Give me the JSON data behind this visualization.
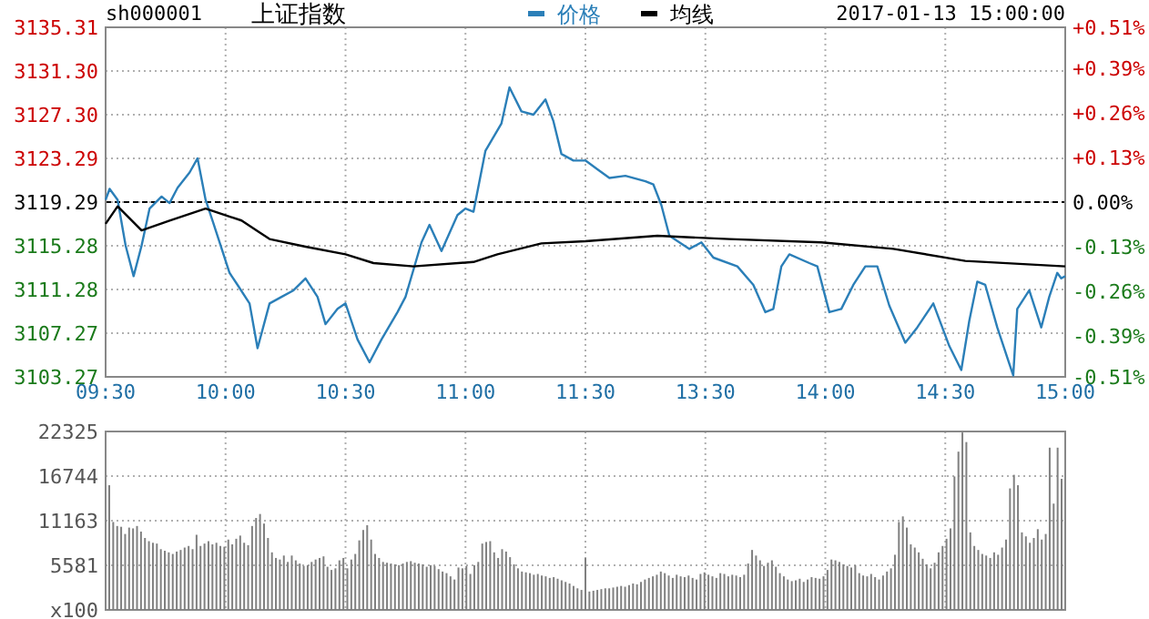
{
  "chart_data": [
    {
      "type": "line",
      "title": "上证指数",
      "subtitle": "sh000001",
      "annotations": [
        "2017-01-13 15:00:00"
      ],
      "legend": "top",
      "grid": true,
      "categories": [
        "09:30",
        null,
        null,
        null,
        null,
        null,
        null,
        null,
        null,
        null,
        null,
        null,
        null,
        null,
        null,
        null,
        null,
        null,
        null,
        null,
        null,
        null,
        null,
        null,
        null,
        null,
        null,
        null,
        null,
        null,
        "10:00",
        null,
        null,
        null,
        null,
        null,
        null,
        null,
        null,
        null,
        null,
        null,
        null,
        null,
        null,
        null,
        null,
        null,
        null,
        null,
        null,
        null,
        null,
        null,
        null,
        null,
        null,
        null,
        null,
        null,
        "10:30",
        null,
        null,
        null,
        null,
        null,
        null,
        null,
        null,
        null,
        null,
        null,
        null,
        null,
        null,
        null,
        null,
        null,
        null,
        null,
        null,
        null,
        null,
        null,
        null,
        null,
        null,
        null,
        null,
        null,
        "11:00",
        null,
        null,
        null,
        null,
        null,
        null,
        null,
        null,
        null,
        null,
        null,
        null,
        null,
        null,
        null,
        null,
        null,
        null,
        null,
        null,
        null,
        null,
        null,
        null,
        null,
        null,
        null,
        null,
        null,
        "11:30",
        null,
        null,
        null,
        null,
        null,
        null,
        null,
        null,
        null,
        null,
        null,
        null,
        null,
        null,
        null,
        null,
        null,
        null,
        null,
        null,
        null,
        null,
        null,
        null,
        null,
        null,
        null,
        null,
        null,
        "13:30",
        null,
        null,
        null,
        null,
        null,
        null,
        null,
        null,
        null,
        null,
        null,
        null,
        null,
        null,
        null,
        null,
        null,
        null,
        null,
        null,
        null,
        null,
        null,
        null,
        null,
        null,
        null,
        null,
        null,
        "14:00",
        null,
        null,
        null,
        null,
        null,
        null,
        null,
        null,
        null,
        null,
        null,
        null,
        null,
        null,
        null,
        null,
        null,
        null,
        null,
        null,
        null,
        null,
        null,
        null,
        null,
        null,
        null,
        null,
        null,
        "14:30",
        null,
        null,
        null,
        null,
        null,
        null,
        null,
        null,
        null,
        null,
        null,
        null,
        null,
        null,
        null,
        null,
        null,
        null,
        null,
        null,
        null,
        null,
        null,
        null,
        null,
        null,
        null,
        null,
        null,
        "15:00"
      ],
      "ylim": [
        3103.27,
        3135.31
      ],
      "yticks": [
        3103.27,
        3107.27,
        3111.28,
        3115.28,
        3119.29,
        3123.29,
        {
          "value": 3127.3,
          "label": "3127.30"
        },
        {
          "value": 3131.3,
          "label": "3131.30"
        },
        3135.31
      ],
      "y2lim": [
        -0.51,
        0.51
      ],
      "y2ticks": [
        {
          "value": -0.51,
          "label": "-0.51%"
        },
        {
          "value": -0.39,
          "label": "-0.39%"
        },
        {
          "value": -0.26,
          "label": "-0.26%"
        },
        {
          "value": -0.13,
          "label": "-0.13%"
        },
        {
          "value": 0,
          "label": "0.00%"
        },
        {
          "value": 0.13,
          "label": "+0.13%"
        },
        {
          "value": 0.26,
          "label": "+0.26%"
        },
        {
          "value": 0.39,
          "label": "+0.39%"
        },
        {
          "value": 0.51,
          "label": "+0.51%"
        }
      ],
      "ref_lines": [
        {
          "axis": "y",
          "value": 3119.29,
          "line_style": "dashed",
          "color": "#000000"
        }
      ],
      "series": [
        {
          "name": "价格",
          "color": "#2b7fb8",
          "values": [
            3119.5,
            3120.5,
            null,
            3119.5,
            null,
            3115.3,
            null,
            3112.5,
            null,
            3115.3,
            null,
            3118.7,
            null,
            null,
            3119.8,
            null,
            3119.2,
            null,
            3120.6,
            null,
            null,
            3122.0,
            null,
            3123.3,
            null,
            3119.5,
            null,
            3117.3,
            null,
            null,
            null,
            3112.8,
            null,
            3111.7,
            null,
            null,
            3110.0,
            null,
            3105.9,
            null,
            null,
            3110.0,
            null,
            null,
            3110.6,
            null,
            null,
            3111.2,
            null,
            null,
            3112.3,
            null,
            null,
            3110.6,
            null,
            3108.1,
            null,
            null,
            3109.5,
            null,
            3110.0,
            null,
            null,
            3106.7,
            null,
            null,
            3104.6,
            null,
            null,
            3106.7,
            null,
            null,
            null,
            3109.2,
            null,
            3110.6,
            null,
            null,
            null,
            3115.6,
            null,
            3117.2,
            null,
            null,
            3114.8,
            null,
            null,
            null,
            3118.1,
            null,
            3118.7,
            null,
            3118.4,
            null,
            null,
            3124.0,
            null,
            null,
            null,
            3126.5,
            null,
            3129.8,
            null,
            null,
            3127.6,
            null,
            null,
            3127.3,
            null,
            null,
            3128.7,
            null,
            3126.7,
            null,
            3123.7,
            null,
            null,
            3123.1,
            null,
            null,
            3123.1,
            null,
            null,
            3122.3,
            null,
            null,
            3121.5,
            null,
            null,
            null,
            3121.7,
            null,
            null,
            null,
            null,
            3121.2,
            null,
            3120.9,
            null,
            3119.0,
            null,
            3116.2,
            null,
            null,
            null,
            null,
            3115.0,
            null,
            null,
            3115.6,
            null,
            null,
            3114.2,
            null,
            null,
            null,
            null,
            null,
            3113.4,
            null,
            null,
            null,
            3111.7,
            null,
            null,
            3109.2,
            null,
            3109.5,
            null,
            3113.4,
            null,
            3114.5,
            null,
            null,
            null,
            null,
            3113.7,
            null,
            3113.4,
            null,
            null,
            3109.2,
            null,
            null,
            3109.5,
            null,
            null,
            3111.7,
            null,
            null,
            3113.4,
            null,
            null,
            3113.4,
            null,
            null,
            3109.8,
            null,
            null,
            null,
            3106.4,
            null,
            null,
            3107.8,
            null,
            null,
            null,
            3110.0,
            null,
            null,
            null,
            3106.1,
            null,
            null,
            3103.9,
            null,
            3108.4,
            null,
            3112.0,
            null,
            3111.7,
            null,
            null,
            3107.8,
            null,
            null,
            3104.5,
            3103.4,
            3109.5,
            null,
            null,
            3111.2,
            null,
            null,
            3107.8,
            null,
            3110.6,
            null,
            3112.8,
            3112.3,
            3112.5
          ]
        },
        {
          "name": "均线",
          "color": "#000000",
          "values": [
            3117.3,
            null,
            null,
            3118.9,
            null,
            null,
            null,
            null,
            null,
            3116.7,
            null,
            null,
            null,
            null,
            null,
            null,
            3117.6,
            null,
            null,
            null,
            null,
            null,
            null,
            null,
            null,
            3118.7,
            null,
            null,
            null,
            null,
            null,
            null,
            null,
            null,
            3117.6,
            null,
            null,
            null,
            null,
            null,
            null,
            3115.9,
            null,
            null,
            null,
            null,
            null,
            null,
            null,
            null,
            3115.2,
            null,
            null,
            null,
            null,
            null,
            null,
            null,
            null,
            null,
            3114.5,
            null,
            null,
            null,
            null,
            null,
            null,
            3113.7,
            null,
            null,
            null,
            null,
            null,
            null,
            null,
            null,
            null,
            3113.4,
            null,
            null,
            null,
            null,
            null,
            null,
            null,
            null,
            null,
            null,
            null,
            null,
            null,
            null,
            3113.8,
            null,
            null,
            null,
            null,
            null,
            3114.5,
            null,
            null,
            null,
            null,
            null,
            null,
            null,
            null,
            null,
            null,
            3115.5,
            null,
            null,
            null,
            null,
            null,
            null,
            null,
            null,
            null,
            null,
            3115.7,
            null,
            null,
            null,
            null,
            null,
            null,
            null,
            null,
            null,
            null,
            null,
            null,
            null,
            null,
            null,
            null,
            null,
            3116.2,
            null,
            null,
            null,
            null,
            null,
            null,
            null,
            null,
            null,
            null,
            null,
            null,
            null,
            null,
            null,
            null,
            null,
            3115.9,
            null,
            null,
            null,
            null,
            null,
            null,
            null,
            null,
            null,
            null,
            null,
            null,
            null,
            null,
            null,
            null,
            null,
            null,
            null,
            null,
            null,
            null,
            3115.6,
            null,
            null,
            null,
            null,
            null,
            null,
            null,
            null,
            null,
            null,
            null,
            null,
            null,
            null,
            null,
            null,
            null,
            3115.0,
            null,
            null,
            null,
            null,
            null,
            null,
            null,
            null,
            null,
            null,
            null,
            null,
            null,
            null,
            null,
            null,
            null,
            3113.9,
            null,
            null,
            null,
            null,
            null,
            null,
            null,
            null,
            null,
            null,
            null,
            null,
            null,
            null,
            null,
            null,
            null,
            null,
            null,
            null,
            null,
            null,
            null,
            null,
            3113.4
          ]
        }
      ]
    },
    {
      "type": "bar",
      "grid": true,
      "tick_labels": "y",
      "color": "#808080",
      "ylim": [
        0,
        22325
      ],
      "yticks": [
        {
          "value": 0,
          "label": "x100"
        },
        5581,
        11163,
        16744,
        22325
      ],
      "categories": [
        null,
        null,
        null,
        null,
        null,
        null,
        null,
        null,
        null,
        null,
        null,
        null,
        null,
        null,
        null,
        null,
        null,
        null,
        null,
        null,
        null,
        null,
        null,
        null,
        null,
        null,
        null,
        null,
        null,
        null,
        null,
        null,
        null,
        null,
        null,
        null,
        null,
        null,
        null,
        null,
        null,
        null,
        null,
        null,
        null,
        null,
        null,
        null,
        null,
        null,
        null,
        null,
        null,
        null,
        null,
        null,
        null,
        null,
        null,
        null,
        null,
        null,
        null,
        null,
        null,
        null,
        null,
        null,
        null,
        null,
        null,
        null,
        null,
        null,
        null,
        null,
        null,
        null,
        null,
        null,
        null,
        null,
        null,
        null,
        null,
        null,
        null,
        null,
        null,
        null,
        null,
        null,
        null,
        null,
        null,
        null,
        null,
        null,
        null,
        null,
        null,
        null,
        null,
        null,
        null,
        null,
        null,
        null,
        null,
        null,
        null,
        null,
        null,
        null,
        null,
        null,
        null,
        null,
        null,
        null,
        null,
        null,
        null,
        null,
        null,
        null,
        null,
        null,
        null,
        null,
        null,
        null,
        null,
        null,
        null,
        null,
        null,
        null,
        null,
        null,
        null,
        null,
        null,
        null,
        null,
        null,
        null,
        null,
        null,
        null,
        null,
        null,
        null,
        null,
        null,
        null,
        null,
        null,
        null,
        null,
        null,
        null,
        null,
        null,
        null,
        null,
        null,
        null,
        null,
        null,
        null,
        null,
        null,
        null,
        null,
        null,
        null,
        null,
        null,
        null,
        null,
        null,
        null,
        null,
        null,
        null,
        null,
        null,
        null,
        null,
        null,
        null,
        null,
        null,
        null,
        null,
        null,
        null,
        null,
        null,
        null,
        null,
        null,
        null,
        null,
        null,
        null,
        null,
        null,
        null,
        null,
        null,
        null,
        null,
        null,
        null,
        null,
        null,
        null,
        null,
        null,
        null,
        null,
        null,
        null,
        null,
        null,
        null,
        null,
        null,
        null,
        null,
        null,
        null,
        null,
        null,
        null,
        null,
        null,
        null,
        null
      ],
      "values": [
        15600,
        11000,
        10500,
        10400,
        9500,
        10300,
        10200,
        10500,
        9800,
        9000,
        8600,
        8400,
        8300,
        7600,
        7400,
        7200,
        7000,
        7300,
        7500,
        7800,
        8000,
        7600,
        9400,
        8000,
        8300,
        8600,
        8200,
        8400,
        8000,
        7900,
        8800,
        8200,
        8900,
        9300,
        8400,
        8100,
        10500,
        11500,
        12000,
        10800,
        9000,
        7200,
        6500,
        6300,
        6800,
        6000,
        6800,
        6200,
        5800,
        5500,
        5600,
        6000,
        6300,
        6500,
        6700,
        5400,
        5000,
        5200,
        6200,
        6500,
        5200,
        6300,
        7000,
        8700,
        10000,
        10600,
        8800,
        7000,
        6500,
        6000,
        5900,
        5800,
        5700,
        5600,
        5800,
        6000,
        6100,
        5900,
        5800,
        5700,
        5400,
        5600,
        5500,
        5100,
        4800,
        4600,
        4200,
        3800,
        5300,
        5200,
        5500,
        4500,
        5600,
        6000,
        8300,
        8500,
        8600,
        7200,
        6500,
        7600,
        7300,
        6600,
        5700,
        5200,
        4800,
        4700,
        4600,
        4400,
        4500,
        4300,
        4200,
        4000,
        4100,
        3900,
        3700,
        3500,
        3300,
        3000,
        2700,
        2500,
        6500,
        2300,
        2400,
        2500,
        2600,
        2700,
        2700,
        2800,
        2900,
        3000,
        2900,
        3100,
        3300,
        3200,
        3500,
        3800,
        4000,
        4200,
        4400,
        4800,
        4600,
        4300,
        4000,
        4400,
        4200,
        4100,
        4300,
        4000,
        3800,
        4500,
        4700,
        4400,
        4200,
        4000,
        4600,
        4500,
        4200,
        4400,
        4300,
        4100,
        4400,
        5800,
        7500,
        6800,
        6200,
        5500,
        5900,
        6200,
        5400,
        4600,
        4200,
        3800,
        3600,
        3700,
        3900,
        3500,
        3800,
        4100,
        4000,
        3900,
        4200,
        5000,
        6300,
        6200,
        6000,
        5700,
        5500,
        5300,
        5600,
        4600,
        4300,
        4200,
        4500,
        4100,
        3800,
        4300,
        4800,
        5200,
        6900,
        11000,
        11700,
        10300,
        8200,
        7800,
        7200,
        6400,
        5700,
        5200,
        5900,
        7200,
        8000,
        8900,
        10200,
        16700,
        19800,
        22200,
        21000,
        9700,
        8000,
        7500,
        7000,
        6800,
        6500,
        7200,
        6900,
        7800,
        8800,
        15200,
        16900,
        15600,
        9700,
        9200,
        8400,
        9000,
        10100,
        8800,
        9500,
        20300,
        13300,
        20300,
        16400
      ]
    }
  ]
}
